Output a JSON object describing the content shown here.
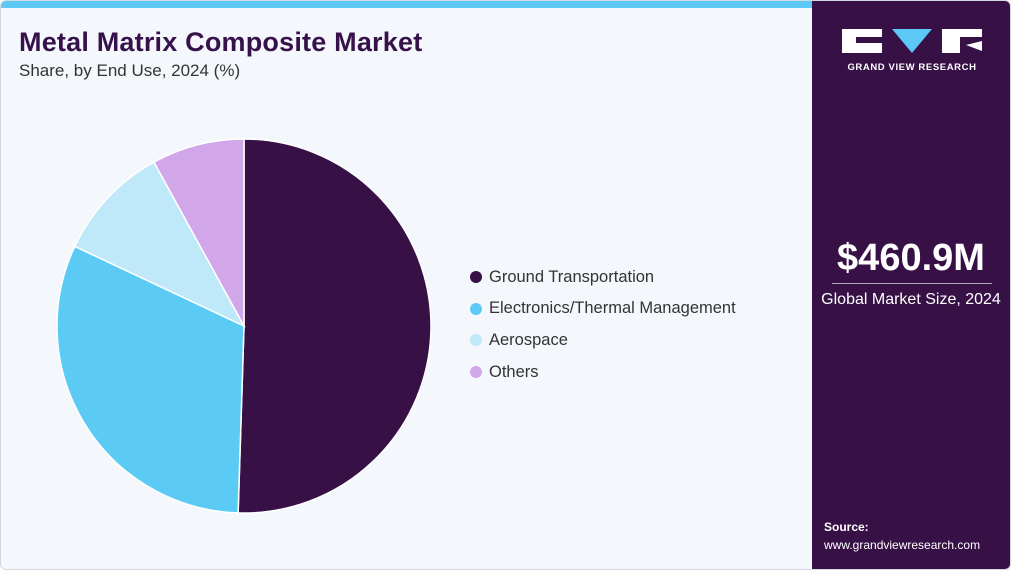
{
  "header": {
    "title": "Metal Matrix Composite Market",
    "subtitle": "Share, by End Use, 2024 (%)"
  },
  "chart_data": {
    "type": "pie",
    "title": "Metal Matrix Composite Market",
    "subtitle": "Share, by End Use, 2024 (%)",
    "legend_position": "right",
    "slices": [
      {
        "label": "Ground Transportation",
        "value": 50.5,
        "color": "#371046"
      },
      {
        "label": "Electronics/Thermal Management",
        "value": 31.5,
        "color": "#5bcbf5"
      },
      {
        "label": "Aerospace",
        "value": 10.0,
        "color": "#bfe9f9"
      },
      {
        "label": "Others",
        "value": 8.0,
        "color": "#d2a7ea"
      }
    ]
  },
  "sidebar": {
    "logo_text": "GRAND VIEW RESEARCH",
    "market_value": "$460.9M",
    "market_caption": "Global Market Size, 2024",
    "source_label": "Source:",
    "source_url": "www.grandviewresearch.com"
  },
  "colors": {
    "brand_purple": "#371046",
    "accent_blue": "#5bc8f5",
    "background": "#f4f8fc"
  }
}
